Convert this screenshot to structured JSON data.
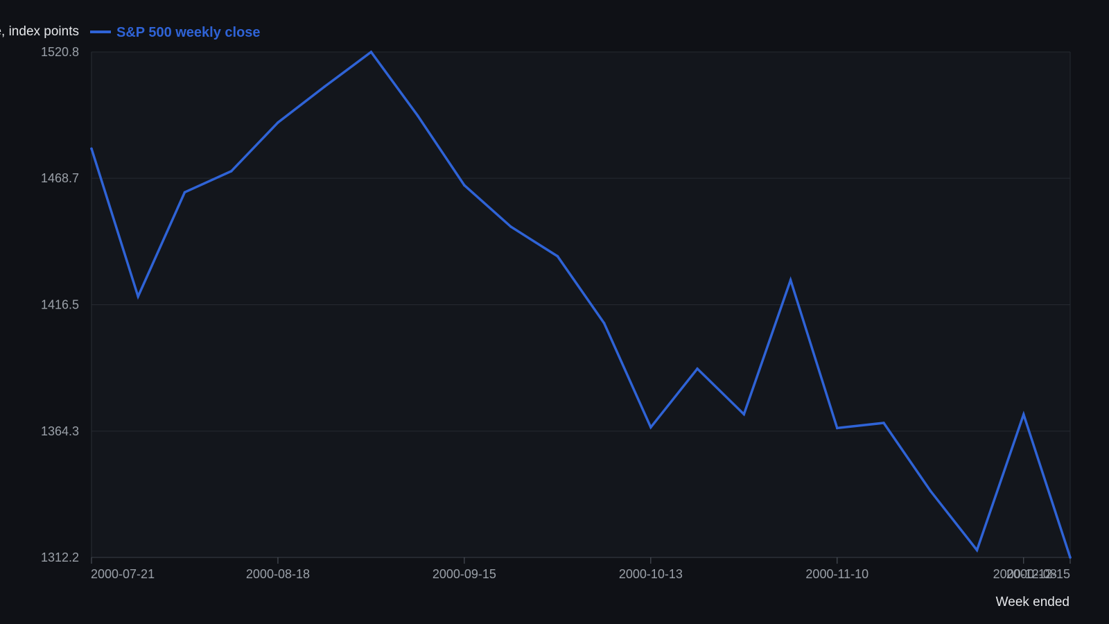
{
  "colors": {
    "background": "#0f1116",
    "plot_background": "#13161c",
    "grid": "#262a31",
    "series_line": "#2f63d6",
    "tick_text": "#9aa0a8",
    "axis_title_text": "#e6e8eb"
  },
  "chart_data": {
    "type": "line",
    "title": "",
    "xlabel": "Week ended",
    "ylabel": "Close, index points",
    "legend": {
      "placement": "top-left",
      "entries": [
        "S&P 500 weekly close"
      ]
    },
    "grid": true,
    "x_tick_labels": [
      "2000-07-21",
      "2000-08-18",
      "2000-09-15",
      "2000-10-13",
      "2000-11-10",
      "2000-12-08",
      "2000-12-15"
    ],
    "y_tick_labels": [
      "1312.2",
      "1364.3",
      "1416.5",
      "1468.7",
      "1520.8"
    ],
    "ylim": [
      1312.2,
      1520.8
    ],
    "xlim": [
      "2000-07-21",
      "2000-12-15"
    ],
    "series": [
      {
        "name": "S&P 500 weekly close",
        "x": [
          "2000-07-21",
          "2000-07-28",
          "2000-08-04",
          "2000-08-11",
          "2000-08-18",
          "2000-08-25",
          "2000-09-01",
          "2000-09-08",
          "2000-09-15",
          "2000-09-22",
          "2000-09-29",
          "2000-10-06",
          "2000-10-13",
          "2000-10-20",
          "2000-10-27",
          "2000-11-03",
          "2000-11-10",
          "2000-11-17",
          "2000-11-24",
          "2000-12-01",
          "2000-12-08",
          "2000-12-15"
        ],
        "values": [
          1480.9,
          1419.9,
          1462.9,
          1471.6,
          1491.7,
          1506.5,
          1520.8,
          1494.5,
          1465.8,
          1448.7,
          1436.5,
          1408.9,
          1365.9,
          1390.1,
          1371.3,
          1426.7,
          1365.6,
          1367.7,
          1339.7,
          1315.2,
          1371.2,
          1312.2
        ]
      }
    ]
  }
}
